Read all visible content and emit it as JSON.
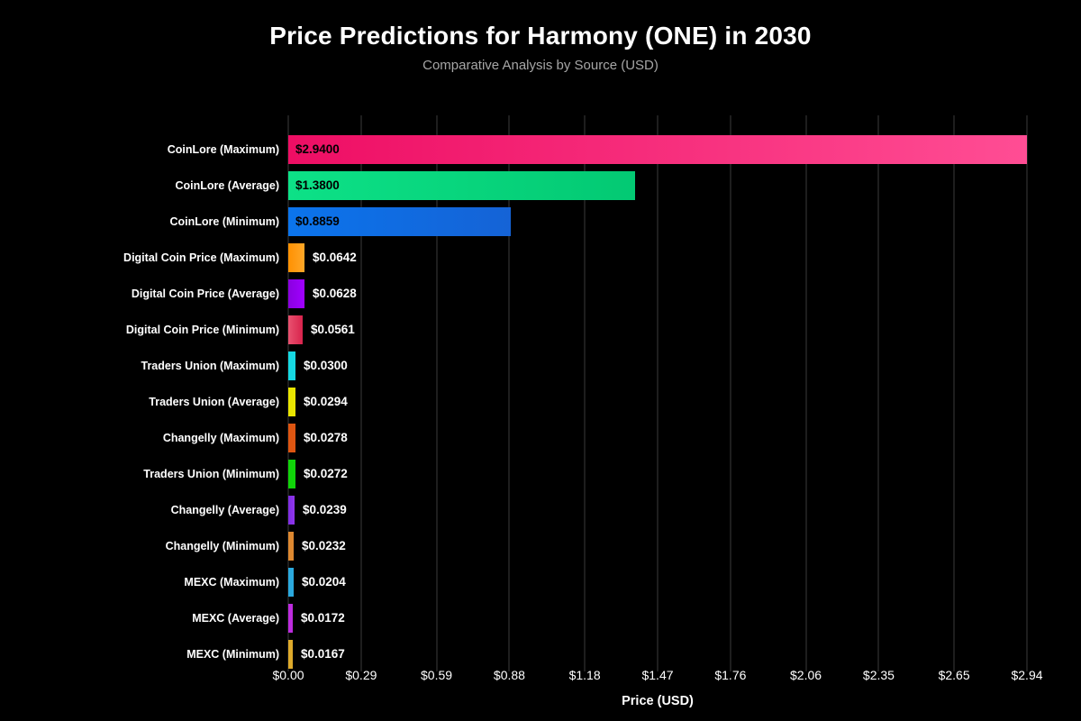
{
  "chart_data": {
    "type": "bar",
    "orientation": "horizontal",
    "title": "Price Predictions for Harmony (ONE) in 2030",
    "subtitle": "Comparative Analysis by Source (USD)",
    "xlabel": "Price (USD)",
    "xlim": [
      0,
      2.94
    ],
    "grid": true,
    "grid_color": "#1e1e1e",
    "background_color": "#000000",
    "title_color": "#ffffff",
    "subtitle_color": "#a6a6a6",
    "x_ticks": [
      "$0.00",
      "$0.29",
      "$0.59",
      "$0.88",
      "$1.18",
      "$1.47",
      "$1.76",
      "$2.06",
      "$2.35",
      "$2.65",
      "$2.94"
    ],
    "x_tick_values": [
      0.0,
      0.29,
      0.59,
      0.88,
      1.18,
      1.47,
      1.76,
      2.06,
      2.35,
      2.65,
      2.94
    ],
    "bars": [
      {
        "label": "CoinLore (Maximum)",
        "value": 2.94,
        "value_label": "$2.9400",
        "color_start": "#ee0e64",
        "color_end": "#ff4d94"
      },
      {
        "label": "CoinLore (Average)",
        "value": 1.38,
        "value_label": "$1.3800",
        "color_start": "#0de187",
        "color_end": "#03c973"
      },
      {
        "label": "CoinLore (Minimum)",
        "value": 0.8859,
        "value_label": "$0.8859",
        "color_start": "#0b74ec",
        "color_end": "#1563d6"
      },
      {
        "label": "Digital Coin Price (Maximum)",
        "value": 0.0642,
        "value_label": "$0.0642",
        "color_start": "#ff9102",
        "color_end": "#ffa727"
      },
      {
        "label": "Digital Coin Price (Average)",
        "value": 0.0628,
        "value_label": "$0.0628",
        "color_start": "#8a00e0",
        "color_end": "#a000ff"
      },
      {
        "label": "Digital Coin Price (Minimum)",
        "value": 0.0561,
        "value_label": "$0.0561",
        "color_start": "#e8516f",
        "color_end": "#d8234c"
      },
      {
        "label": "Traders Union (Maximum)",
        "value": 0.03,
        "value_label": "$0.0300",
        "color_start": "#16d8e2",
        "color_end": "#16d8e2"
      },
      {
        "label": "Traders Union (Average)",
        "value": 0.0294,
        "value_label": "$0.0294",
        "color_start": "#e9e500",
        "color_end": "#e9e500"
      },
      {
        "label": "Changelly (Maximum)",
        "value": 0.0278,
        "value_label": "$0.0278",
        "color_start": "#dd5511",
        "color_end": "#dd5511"
      },
      {
        "label": "Traders Union (Minimum)",
        "value": 0.0272,
        "value_label": "$0.0272",
        "color_start": "#10d409",
        "color_end": "#10d409"
      },
      {
        "label": "Changelly (Average)",
        "value": 0.0239,
        "value_label": "$0.0239",
        "color_start": "#7e2ee2",
        "color_end": "#9035ec"
      },
      {
        "label": "Changelly (Minimum)",
        "value": 0.0232,
        "value_label": "$0.0232",
        "color_start": "#dd8830",
        "color_end": "#dd8830"
      },
      {
        "label": "MEXC (Maximum)",
        "value": 0.0204,
        "value_label": "$0.0204",
        "color_start": "#2ba9de",
        "color_end": "#2ba9de"
      },
      {
        "label": "MEXC (Average)",
        "value": 0.0172,
        "value_label": "$0.0172",
        "color_start": "#bd2cde",
        "color_end": "#bd2cde"
      },
      {
        "label": "MEXC (Minimum)",
        "value": 0.0167,
        "value_label": "$0.0167",
        "color_start": "#deaa2b",
        "color_end": "#deaa2b"
      }
    ]
  }
}
